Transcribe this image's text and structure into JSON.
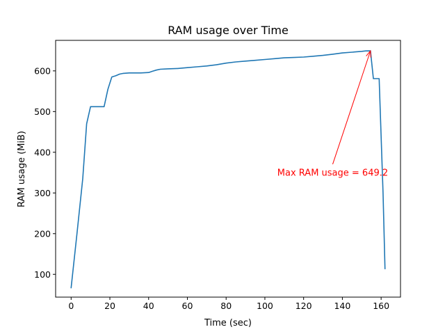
{
  "chart_data": {
    "type": "line",
    "title": "RAM usage over Time",
    "xlabel": "Time (sec)",
    "ylabel": "RAM usage (MiB)",
    "xlim": [
      -8,
      170
    ],
    "ylim": [
      44,
      675
    ],
    "xticks": [
      0,
      20,
      40,
      60,
      80,
      100,
      120,
      140,
      160
    ],
    "yticks": [
      100,
      200,
      300,
      400,
      500,
      600
    ],
    "grid": false,
    "line_color": "#1f77b4",
    "annotation_color": "#ff0000",
    "series": [
      {
        "x": [
          0,
          3,
          6,
          8,
          10,
          12,
          14,
          17,
          19,
          21,
          23,
          25,
          27,
          30,
          33,
          36,
          40,
          42,
          44,
          46,
          50,
          55,
          60,
          65,
          70,
          75,
          80,
          85,
          90,
          95,
          100,
          105,
          110,
          115,
          120,
          125,
          130,
          135,
          140,
          145,
          150,
          152,
          154.5,
          156,
          159,
          161,
          162
        ],
        "y": [
          67,
          200,
          335,
          470,
          512,
          512,
          512,
          512,
          555,
          585,
          588,
          592,
          594,
          595,
          595,
          595,
          596,
          599,
          602,
          604,
          605,
          606,
          608,
          610,
          612,
          615,
          619,
          622,
          624,
          626,
          628,
          630,
          632,
          633,
          634,
          636,
          638,
          641,
          644,
          646,
          648,
          649,
          649.2,
          581,
          581,
          300,
          114
        ]
      }
    ],
    "annotations": [
      {
        "text": "Max RAM usage = 649.2",
        "point": [
          154.5,
          649.2
        ],
        "text_anchor": [
          135,
          350
        ]
      }
    ]
  }
}
